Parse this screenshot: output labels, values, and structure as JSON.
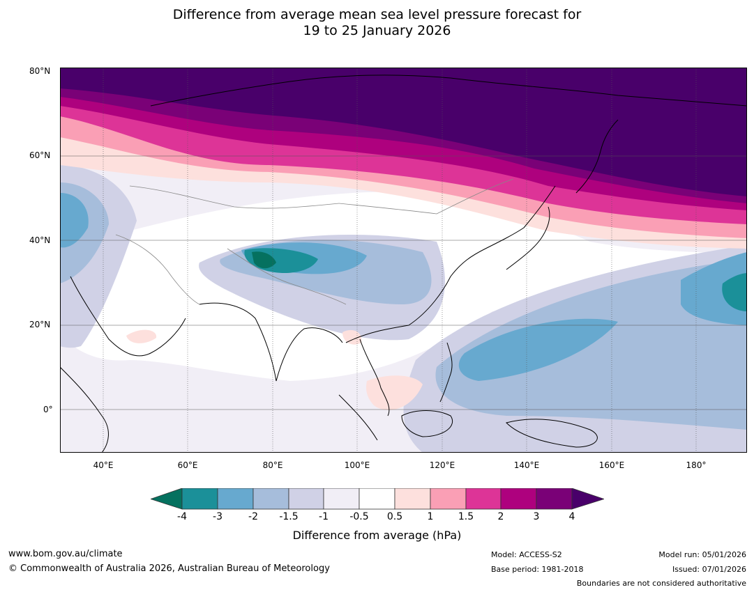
{
  "title_line1": "Difference from average mean sea level pressure forecast for",
  "title_line2": "19 to 25 January 2026",
  "map": {
    "lat_labels": [
      "80°N",
      "60°N",
      "40°N",
      "20°N",
      "0°"
    ],
    "lon_labels": [
      "40°E",
      "60°E",
      "80°E",
      "100°E",
      "120°E",
      "140°E",
      "160°E",
      "180°"
    ],
    "colors": {
      "n4": "#05715f",
      "n3": "#1b9099",
      "n2": "#67a9cf",
      "n15": "#a6bddb",
      "n1": "#d0d1e6",
      "n05": "#f1eef6",
      "zero": "#ffffff",
      "p05": "#fde0dd",
      "p1": "#fa9fb5",
      "p15": "#dd3497",
      "p2": "#ae017e",
      "p3": "#7a0177",
      "p4": "#49006a"
    }
  },
  "colorbar": {
    "tick_labels": [
      "-4",
      "-3",
      "-2",
      "-1.5",
      "-1",
      "-0.5",
      "0.5",
      "1",
      "1.5",
      "2",
      "3",
      "4"
    ],
    "label": "Difference from average (hPa)"
  },
  "footer": {
    "website": "www.bom.gov.au/climate",
    "copyright": "© Commonwealth of Australia 2026, Australian Bureau of Meteorology",
    "model": "Model: ACCESS-S2",
    "base_period": "Base period: 1981-2018",
    "model_run": "Model run: 05/01/2026",
    "issued": "Issued: 07/01/2026",
    "disclaimer": "Boundaries are not considered authoritative"
  }
}
